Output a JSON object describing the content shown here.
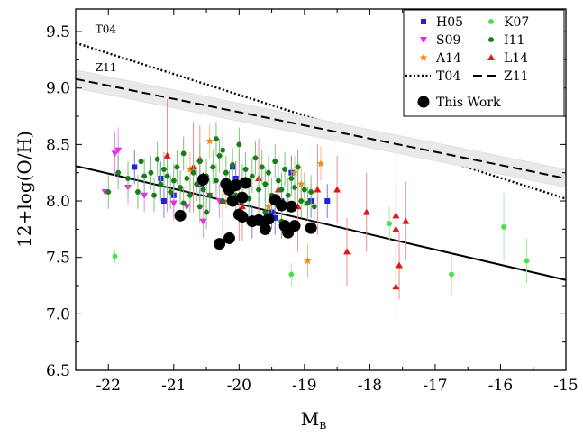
{
  "chart_data": {
    "type": "scatter",
    "title": "",
    "xlabel": "M",
    "xlabel_sub": "B",
    "ylabel": "12+log(O/H)",
    "xlim": [
      -22.5,
      -15
    ],
    "ylim": [
      6.5,
      9.7
    ],
    "x_ticks": [
      "-22",
      "-21",
      "-20",
      "-19",
      "-18",
      "-17",
      "-16",
      "-15"
    ],
    "y_ticks": [
      "6.5",
      "7.0",
      "7.5",
      "8.0",
      "8.5",
      "9.0",
      "9.5"
    ],
    "grid": false,
    "legend_position": "top-right",
    "legend": [
      {
        "label": "H05",
        "marker": "square",
        "color": "#1f22d8"
      },
      {
        "label": "K07",
        "marker": "hexagon",
        "color": "#4be34b"
      },
      {
        "label": "S09",
        "marker": "triangle-down",
        "color": "#e52ee5"
      },
      {
        "label": "I11",
        "marker": "hexagon",
        "color": "#1a7d1a"
      },
      {
        "label": "A14",
        "marker": "star",
        "color": "#ee8c20"
      },
      {
        "label": "L14",
        "marker": "triangle-up",
        "color": "#e01818"
      },
      {
        "label": "T04",
        "marker": "dotted-line",
        "color": "#000000"
      },
      {
        "label": "Z11",
        "marker": "dashed-line",
        "color": "#000000"
      },
      {
        "label": "This Work",
        "marker": "big-circle",
        "color": "#000000"
      }
    ],
    "annotations": [
      {
        "text": "T04",
        "x": -22.2,
        "y": 9.49
      },
      {
        "text": "Z11",
        "x": -22.2,
        "y": 9.15
      }
    ],
    "lines": [
      {
        "name": "T04",
        "style": "dotted",
        "x": [
          -22.5,
          -15
        ],
        "y": [
          9.4,
          8.02
        ]
      },
      {
        "name": "Z11",
        "style": "dashed",
        "x": [
          -22.5,
          -15
        ],
        "y": [
          9.08,
          8.2
        ],
        "band": 0.08
      },
      {
        "name": "fit",
        "style": "solid",
        "x": [
          -22.5,
          -15
        ],
        "y": [
          8.31,
          7.3
        ]
      }
    ],
    "series": [
      {
        "name": "H05",
        "marker": "square",
        "color": "#1f22d8",
        "err_color": "#7a7ae0",
        "points": [
          [
            -21.6,
            8.3,
            0.15
          ],
          [
            -21.2,
            8.2,
            0.15
          ],
          [
            -21.15,
            8.0,
            0.15
          ],
          [
            -21.0,
            8.05,
            0.15
          ],
          [
            -20.6,
            8.15,
            0.15
          ],
          [
            -20.1,
            8.3,
            0.15
          ],
          [
            -20.05,
            8.2,
            0.15
          ],
          [
            -19.5,
            7.9,
            0.15
          ],
          [
            -19.2,
            8.25,
            0.15
          ],
          [
            -19.45,
            7.85,
            0.15
          ],
          [
            -18.9,
            8.0,
            0.15
          ],
          [
            -18.65,
            8.0,
            0.15
          ],
          [
            -19.8,
            7.82,
            0.15
          ],
          [
            -19.35,
            8.0,
            0.15
          ]
        ]
      },
      {
        "name": "S09",
        "marker": "triangle-down",
        "color": "#e52ee5",
        "err_color": "#eb8feb",
        "points": [
          [
            -22.05,
            8.08,
            0.15
          ],
          [
            -21.9,
            8.42,
            0.2
          ],
          [
            -21.85,
            8.45,
            0.2
          ],
          [
            -21.7,
            8.12,
            0.15
          ],
          [
            -21.45,
            8.05,
            0.15
          ],
          [
            -21.0,
            7.98,
            0.15
          ],
          [
            -20.8,
            7.95,
            0.15
          ],
          [
            -20.55,
            7.82,
            0.15
          ],
          [
            -20.45,
            8.05,
            0.15
          ],
          [
            -20.3,
            8.0,
            0.15
          ]
        ]
      },
      {
        "name": "A14",
        "marker": "star",
        "color": "#ee8c20",
        "err_color": "#f3b880",
        "points": [
          [
            -20.75,
            8.28,
            0.15
          ],
          [
            -20.45,
            8.53,
            0.15
          ],
          [
            -20.2,
            8.08,
            0.15
          ],
          [
            -19.55,
            7.95,
            0.15
          ],
          [
            -19.15,
            8.25,
            0.15
          ],
          [
            -19.05,
            8.15,
            0.15
          ],
          [
            -18.95,
            7.47,
            0.15
          ],
          [
            -18.75,
            8.33,
            0.15
          ]
        ]
      },
      {
        "name": "L14",
        "marker": "triangle-up",
        "color": "#e01818",
        "err_color": "#ef8b8b",
        "points": [
          [
            -21.1,
            8.4,
            0.5
          ],
          [
            -20.6,
            8.37,
            0.3
          ],
          [
            -20.25,
            8.0,
            0.3
          ],
          [
            -20.0,
            8.05,
            0.4
          ],
          [
            -19.95,
            7.95,
            0.3
          ],
          [
            -19.4,
            8.1,
            0.3
          ],
          [
            -19.1,
            7.95,
            0.4
          ],
          [
            -18.8,
            8.1,
            0.4
          ],
          [
            -18.5,
            8.1,
            0.3
          ],
          [
            -18.35,
            7.55,
            0.3
          ],
          [
            -18.05,
            7.9,
            0.35
          ],
          [
            -17.6,
            7.75,
            0.4
          ],
          [
            -17.6,
            7.87,
            0.6
          ],
          [
            -17.55,
            7.43,
            0.3
          ],
          [
            -17.45,
            7.82,
            0.35
          ],
          [
            -17.6,
            7.24,
            0.3
          ],
          [
            -20.7,
            8.3,
            0.4
          ],
          [
            -19.7,
            8.2,
            0.35
          ]
        ]
      },
      {
        "name": "K07",
        "marker": "hexagon",
        "color": "#4be34b",
        "err_color": "#a2ec9c",
        "points": [
          [
            -21.9,
            7.51,
            0.06
          ],
          [
            -19.2,
            7.35,
            0.1
          ],
          [
            -17.7,
            7.8,
            0.15
          ],
          [
            -16.75,
            7.35,
            0.18
          ],
          [
            -15.95,
            7.77,
            0.3
          ],
          [
            -15.6,
            7.47,
            0.2
          ]
        ]
      },
      {
        "name": "I11",
        "marker": "hexagon",
        "color": "#1a7d1a",
        "err_color": "#79c079",
        "points": [
          [
            -22.0,
            8.08,
            0.15
          ],
          [
            -21.85,
            8.25,
            0.15
          ],
          [
            -21.7,
            8.2,
            0.15
          ],
          [
            -21.5,
            8.35,
            0.15
          ],
          [
            -21.45,
            8.22,
            0.15
          ],
          [
            -21.35,
            8.25,
            0.15
          ],
          [
            -21.25,
            8.37,
            0.15
          ],
          [
            -21.2,
            8.15,
            0.15
          ],
          [
            -21.15,
            8.28,
            0.15
          ],
          [
            -21.1,
            8.22,
            0.15
          ],
          [
            -21.05,
            8.08,
            0.15
          ],
          [
            -21.0,
            8.18,
            0.15
          ],
          [
            -20.95,
            8.3,
            0.15
          ],
          [
            -20.9,
            8.12,
            0.15
          ],
          [
            -20.85,
            8.42,
            0.15
          ],
          [
            -20.8,
            8.2,
            0.15
          ],
          [
            -20.75,
            8.05,
            0.15
          ],
          [
            -20.7,
            8.25,
            0.15
          ],
          [
            -20.65,
            8.15,
            0.15
          ],
          [
            -20.6,
            8.35,
            0.15
          ],
          [
            -20.55,
            8.1,
            0.15
          ],
          [
            -20.5,
            8.22,
            0.15
          ],
          [
            -20.45,
            8.05,
            0.15
          ],
          [
            -20.4,
            8.3,
            0.15
          ],
          [
            -20.35,
            8.18,
            0.15
          ],
          [
            -20.3,
            8.4,
            0.15
          ],
          [
            -20.25,
            8.0,
            0.15
          ],
          [
            -20.2,
            8.25,
            0.15
          ],
          [
            -20.15,
            8.12,
            0.15
          ],
          [
            -20.1,
            8.32,
            0.15
          ],
          [
            -20.05,
            8.05,
            0.15
          ],
          [
            -20.0,
            8.5,
            0.15
          ],
          [
            -19.95,
            8.18,
            0.15
          ],
          [
            -19.9,
            8.28,
            0.15
          ],
          [
            -19.85,
            8.02,
            0.15
          ],
          [
            -19.8,
            8.22,
            0.15
          ],
          [
            -19.75,
            8.38,
            0.15
          ],
          [
            -19.7,
            8.1,
            0.15
          ],
          [
            -19.65,
            8.3,
            0.15
          ],
          [
            -19.6,
            8.15,
            0.15
          ],
          [
            -19.55,
            8.25,
            0.15
          ],
          [
            -19.5,
            8.05,
            0.15
          ],
          [
            -19.45,
            8.35,
            0.15
          ],
          [
            -19.4,
            8.18,
            0.15
          ],
          [
            -19.35,
            8.1,
            0.15
          ],
          [
            -19.3,
            8.28,
            0.15
          ],
          [
            -19.25,
            8.05,
            0.15
          ],
          [
            -19.2,
            8.2,
            0.15
          ],
          [
            -19.15,
            8.12,
            0.15
          ],
          [
            -19.1,
            8.3,
            0.15
          ],
          [
            -19.05,
            8.0,
            0.15
          ],
          [
            -19.0,
            8.1,
            0.15
          ],
          [
            -18.95,
            7.98,
            0.15
          ],
          [
            -18.9,
            8.08,
            0.15
          ],
          [
            -18.85,
            7.95,
            0.15
          ],
          [
            -20.85,
            7.98,
            0.15
          ],
          [
            -20.6,
            7.95,
            0.15
          ],
          [
            -20.35,
            8.55,
            0.15
          ],
          [
            -20.5,
            7.9,
            0.15
          ],
          [
            -19.35,
            7.82,
            0.15
          ],
          [
            -19.6,
            7.9,
            0.15
          ],
          [
            -21.3,
            8.05,
            0.15
          ],
          [
            -20.25,
            8.45,
            0.15
          ],
          [
            -21.55,
            8.08,
            0.15
          ]
        ]
      },
      {
        "name": "This Work",
        "marker": "big-circle",
        "color": "#000000",
        "err_color": "#000000",
        "points": [
          [
            -20.9,
            7.87,
            0.05
          ],
          [
            -20.55,
            8.19,
            0.06
          ],
          [
            -20.3,
            7.62,
            0.05
          ],
          [
            -20.2,
            8.15,
            0.04
          ],
          [
            -20.15,
            7.67,
            0.05
          ],
          [
            -20.1,
            8.0,
            0.05
          ],
          [
            -20.05,
            8.14,
            0.05
          ],
          [
            -20.0,
            7.88,
            0.05
          ],
          [
            -19.95,
            8.03,
            0.05
          ],
          [
            -19.9,
            8.16,
            0.05
          ],
          [
            -19.8,
            7.82,
            0.05
          ],
          [
            -19.7,
            7.83,
            0.05
          ],
          [
            -19.6,
            7.75,
            0.05
          ],
          [
            -19.55,
            7.84,
            0.05
          ],
          [
            -19.45,
            8.01,
            0.05
          ],
          [
            -19.35,
            7.96,
            0.05
          ],
          [
            -19.3,
            7.78,
            0.05
          ],
          [
            -19.25,
            7.72,
            0.05
          ],
          [
            -19.2,
            7.95,
            0.05
          ],
          [
            -19.15,
            7.78,
            0.05
          ],
          [
            -18.9,
            7.76,
            0.05
          ],
          [
            -20.15,
            8.1,
            0.05
          ],
          [
            -19.95,
            7.86,
            0.05
          ]
        ]
      }
    ]
  }
}
